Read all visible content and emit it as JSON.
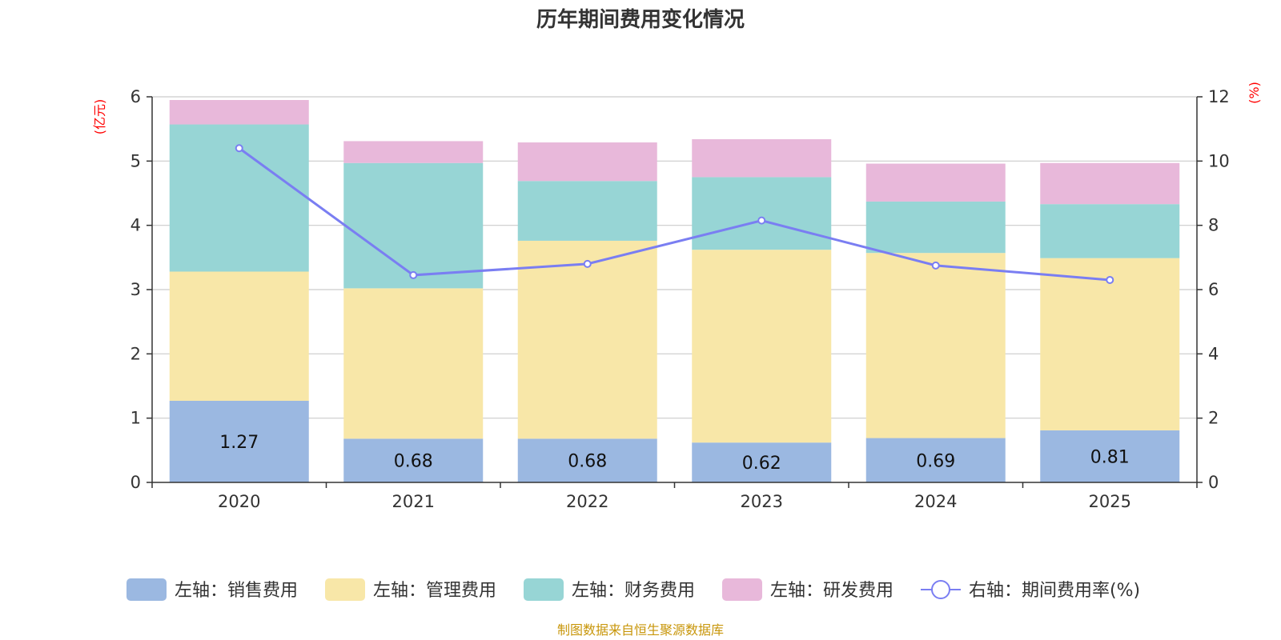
{
  "chart_data": {
    "type": "bar",
    "stacked": true,
    "title": "历年期间费用变化情况",
    "categories": [
      "2020",
      "2021",
      "2022",
      "2023",
      "2024",
      "2025"
    ],
    "left_axis": {
      "unit_label": "(亿元)",
      "ylim": [
        0,
        6
      ],
      "ticks": [
        "0",
        "1",
        "2",
        "3",
        "4",
        "5",
        "6"
      ]
    },
    "right_axis": {
      "unit_label": "(%)",
      "ylim": [
        0,
        12
      ],
      "ticks": [
        "0",
        "2",
        "4",
        "6",
        "8",
        "10",
        "12"
      ]
    },
    "series": [
      {
        "name": "左轴：销售费用",
        "type": "bar",
        "axis": "left",
        "color": "#9bb8e1",
        "values": [
          1.27,
          0.68,
          0.68,
          0.62,
          0.69,
          0.81
        ],
        "show_labels": true
      },
      {
        "name": "左轴：管理费用",
        "type": "bar",
        "axis": "left",
        "color": "#f8e7a8",
        "values": [
          2.01,
          2.34,
          3.08,
          3.0,
          2.88,
          2.68
        ]
      },
      {
        "name": "左轴：财务费用",
        "type": "bar",
        "axis": "left",
        "color": "#97d5d5",
        "values": [
          2.29,
          1.95,
          0.93,
          1.13,
          0.8,
          0.84
        ]
      },
      {
        "name": "左轴：研发费用",
        "type": "bar",
        "axis": "left",
        "color": "#e8b8da",
        "values": [
          0.38,
          0.34,
          0.6,
          0.59,
          0.59,
          0.64
        ]
      },
      {
        "name": "右轴：期间费用率(%)",
        "type": "line",
        "axis": "right",
        "color": "#7a7ef2",
        "values": [
          10.4,
          6.45,
          6.8,
          8.15,
          6.75,
          6.3
        ]
      }
    ],
    "source": "制图数据来自恒生聚源数据库"
  }
}
